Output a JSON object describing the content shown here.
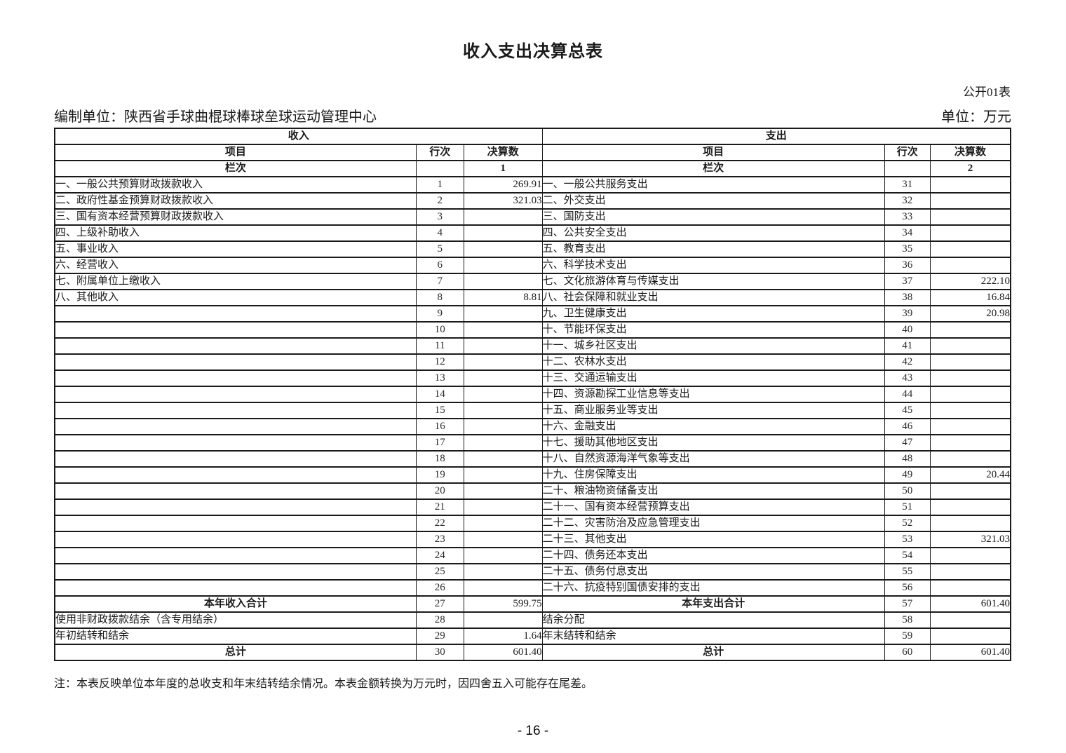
{
  "page": {
    "title": "收入支出决算总表",
    "form_label": "公开01表",
    "prepared_by": "编制单位：陕西省手球曲棍球棒球垒球运动管理中心",
    "unit_label": "单位：万元",
    "note": "注：本表反映单位本年度的总收支和年末结转结余情况。本表金额转换为万元时，因四舍五入可能存在尾差。",
    "page_number": "- 16 -"
  },
  "table": {
    "income_header": "收入",
    "expense_header": "支出",
    "col_item": "项目",
    "col_line": "行次",
    "col_amount": "决算数",
    "col_index_label": "栏次",
    "income_col_no": "1",
    "expense_col_no": "2",
    "rows": [
      {
        "l_item": "一、一般公共预算财政拨款收入",
        "l_no": "1",
        "l_val": "269.91",
        "r_item": "一、一般公共服务支出",
        "r_no": "31",
        "r_val": "",
        "l_total": false,
        "r_total": false
      },
      {
        "l_item": "二、政府性基金预算财政拨款收入",
        "l_no": "2",
        "l_val": "321.03",
        "r_item": "二、外交支出",
        "r_no": "32",
        "r_val": "",
        "l_total": false,
        "r_total": false
      },
      {
        "l_item": "三、国有资本经营预算财政拨款收入",
        "l_no": "3",
        "l_val": "",
        "r_item": "三、国防支出",
        "r_no": "33",
        "r_val": "",
        "l_total": false,
        "r_total": false
      },
      {
        "l_item": "四、上级补助收入",
        "l_no": "4",
        "l_val": "",
        "r_item": "四、公共安全支出",
        "r_no": "34",
        "r_val": "",
        "l_total": false,
        "r_total": false
      },
      {
        "l_item": "五、事业收入",
        "l_no": "5",
        "l_val": "",
        "r_item": "五、教育支出",
        "r_no": "35",
        "r_val": "",
        "l_total": false,
        "r_total": false
      },
      {
        "l_item": "六、经营收入",
        "l_no": "6",
        "l_val": "",
        "r_item": "六、科学技术支出",
        "r_no": "36",
        "r_val": "",
        "l_total": false,
        "r_total": false
      },
      {
        "l_item": "七、附属单位上缴收入",
        "l_no": "7",
        "l_val": "",
        "r_item": "七、文化旅游体育与传媒支出",
        "r_no": "37",
        "r_val": "222.10",
        "l_total": false,
        "r_total": false
      },
      {
        "l_item": "八、其他收入",
        "l_no": "8",
        "l_val": "8.81",
        "r_item": "八、社会保障和就业支出",
        "r_no": "38",
        "r_val": "16.84",
        "l_total": false,
        "r_total": false
      },
      {
        "l_item": "",
        "l_no": "9",
        "l_val": "",
        "r_item": "九、卫生健康支出",
        "r_no": "39",
        "r_val": "20.98",
        "l_total": false,
        "r_total": false
      },
      {
        "l_item": "",
        "l_no": "10",
        "l_val": "",
        "r_item": "十、节能环保支出",
        "r_no": "40",
        "r_val": "",
        "l_total": false,
        "r_total": false
      },
      {
        "l_item": "",
        "l_no": "11",
        "l_val": "",
        "r_item": "十一、城乡社区支出",
        "r_no": "41",
        "r_val": "",
        "l_total": false,
        "r_total": false
      },
      {
        "l_item": "",
        "l_no": "12",
        "l_val": "",
        "r_item": "十二、农林水支出",
        "r_no": "42",
        "r_val": "",
        "l_total": false,
        "r_total": false
      },
      {
        "l_item": "",
        "l_no": "13",
        "l_val": "",
        "r_item": "十三、交通运输支出",
        "r_no": "43",
        "r_val": "",
        "l_total": false,
        "r_total": false
      },
      {
        "l_item": "",
        "l_no": "14",
        "l_val": "",
        "r_item": "十四、资源勘探工业信息等支出",
        "r_no": "44",
        "r_val": "",
        "l_total": false,
        "r_total": false
      },
      {
        "l_item": "",
        "l_no": "15",
        "l_val": "",
        "r_item": "十五、商业服务业等支出",
        "r_no": "45",
        "r_val": "",
        "l_total": false,
        "r_total": false
      },
      {
        "l_item": "",
        "l_no": "16",
        "l_val": "",
        "r_item": "十六、金融支出",
        "r_no": "46",
        "r_val": "",
        "l_total": false,
        "r_total": false
      },
      {
        "l_item": "",
        "l_no": "17",
        "l_val": "",
        "r_item": "十七、援助其他地区支出",
        "r_no": "47",
        "r_val": "",
        "l_total": false,
        "r_total": false
      },
      {
        "l_item": "",
        "l_no": "18",
        "l_val": "",
        "r_item": "十八、自然资源海洋气象等支出",
        "r_no": "48",
        "r_val": "",
        "l_total": false,
        "r_total": false
      },
      {
        "l_item": "",
        "l_no": "19",
        "l_val": "",
        "r_item": "十九、住房保障支出",
        "r_no": "49",
        "r_val": "20.44",
        "l_total": false,
        "r_total": false
      },
      {
        "l_item": "",
        "l_no": "20",
        "l_val": "",
        "r_item": "二十、粮油物资储备支出",
        "r_no": "50",
        "r_val": "",
        "l_total": false,
        "r_total": false
      },
      {
        "l_item": "",
        "l_no": "21",
        "l_val": "",
        "r_item": "二十一、国有资本经营预算支出",
        "r_no": "51",
        "r_val": "",
        "l_total": false,
        "r_total": false
      },
      {
        "l_item": "",
        "l_no": "22",
        "l_val": "",
        "r_item": "二十二、灾害防治及应急管理支出",
        "r_no": "52",
        "r_val": "",
        "l_total": false,
        "r_total": false
      },
      {
        "l_item": "",
        "l_no": "23",
        "l_val": "",
        "r_item": "二十三、其他支出",
        "r_no": "53",
        "r_val": "321.03",
        "l_total": false,
        "r_total": false
      },
      {
        "l_item": "",
        "l_no": "24",
        "l_val": "",
        "r_item": "二十四、债务还本支出",
        "r_no": "54",
        "r_val": "",
        "l_total": false,
        "r_total": false
      },
      {
        "l_item": "",
        "l_no": "25",
        "l_val": "",
        "r_item": "二十五、债务付息支出",
        "r_no": "55",
        "r_val": "",
        "l_total": false,
        "r_total": false
      },
      {
        "l_item": "",
        "l_no": "26",
        "l_val": "",
        "r_item": "二十六、抗疫特别国债安排的支出",
        "r_no": "56",
        "r_val": "",
        "l_total": false,
        "r_total": false
      },
      {
        "l_item": "本年收入合计",
        "l_no": "27",
        "l_val": "599.75",
        "r_item": "本年支出合计",
        "r_no": "57",
        "r_val": "601.40",
        "l_total": true,
        "r_total": true
      },
      {
        "l_item": "使用非财政拨款结余（含专用结余）",
        "l_no": "28",
        "l_val": "",
        "r_item": "结余分配",
        "r_no": "58",
        "r_val": "",
        "l_total": false,
        "r_total": false
      },
      {
        "l_item": "年初结转和结余",
        "l_no": "29",
        "l_val": "1.64",
        "r_item": "年末结转和结余",
        "r_no": "59",
        "r_val": "",
        "l_total": false,
        "r_total": false
      },
      {
        "l_item": "总计",
        "l_no": "30",
        "l_val": "601.40",
        "r_item": "总计",
        "r_no": "60",
        "r_val": "601.40",
        "l_total": true,
        "r_total": true
      }
    ]
  }
}
